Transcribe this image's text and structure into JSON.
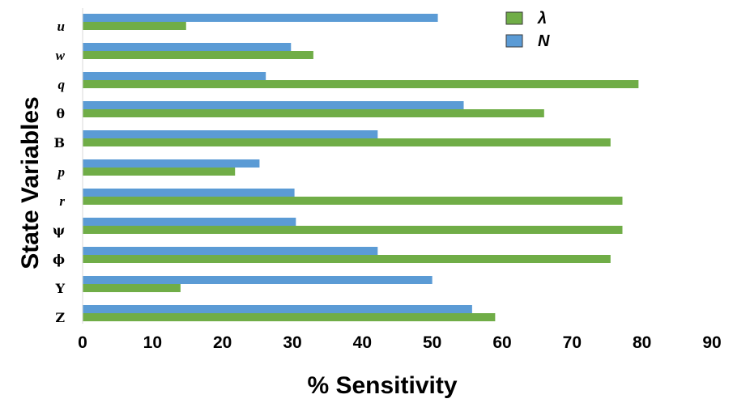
{
  "chart_data": {
    "type": "bar",
    "orientation": "horizontal",
    "title": "",
    "xlabel": "% Sensitivity",
    "ylabel": "State Variables",
    "xlim": [
      0,
      90
    ],
    "xticks": [
      "0",
      "10",
      "20",
      "30",
      "40",
      "50",
      "60",
      "70",
      "80",
      "90"
    ],
    "grid": false,
    "legend_position": "top-right",
    "categories": [
      "u",
      "w",
      "q",
      "θ",
      "B",
      "p",
      "r",
      "ψ",
      "ϕ",
      "Y",
      "Z"
    ],
    "series": [
      {
        "name": "λ",
        "color": "#70ad47",
        "values": [
          14.8,
          33.0,
          79.5,
          66.0,
          75.5,
          21.8,
          77.2,
          77.2,
          75.5,
          14.0,
          59.0
        ]
      },
      {
        "name": "N",
        "color": "#5b9bd5",
        "values": [
          50.8,
          29.8,
          26.2,
          54.5,
          42.2,
          25.3,
          30.3,
          30.5,
          42.2,
          50.0,
          55.7
        ]
      }
    ]
  }
}
